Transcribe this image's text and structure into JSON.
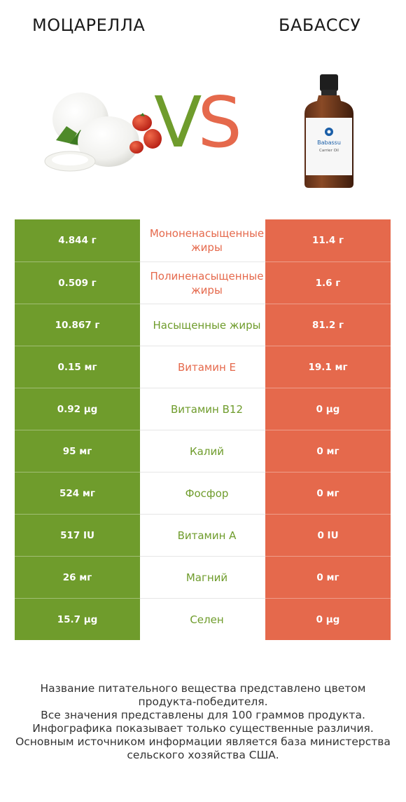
{
  "header": {
    "left_title": "МОЦАРЕЛЛА",
    "right_title": "БАБАССУ",
    "vs_v": "V",
    "vs_s": "S"
  },
  "images": {
    "left": "mozzarella-image",
    "right": "babassu-oil-bottle-image",
    "bottle_label_brand": "Babassu",
    "bottle_label_sub": "Carrier Oil"
  },
  "colors": {
    "left_accent": "#6f9c2c",
    "right_accent": "#e5694c"
  },
  "rows": [
    {
      "left": "4.844 г",
      "name": "Мононенасыщенные жиры",
      "right": "11.4 г",
      "winner": "right"
    },
    {
      "left": "0.509 г",
      "name": "Полиненасыщенные жиры",
      "right": "1.6 г",
      "winner": "right"
    },
    {
      "left": "10.867 г",
      "name": "Насыщенные жиры",
      "right": "81.2 г",
      "winner": "left"
    },
    {
      "left": "0.15 мг",
      "name": "Витамин E",
      "right": "19.1 мг",
      "winner": "right"
    },
    {
      "left": "0.92 µg",
      "name": "Витамин B12",
      "right": "0 µg",
      "winner": "left"
    },
    {
      "left": "95 мг",
      "name": "Калий",
      "right": "0 мг",
      "winner": "left"
    },
    {
      "left": "524 мг",
      "name": "Фосфор",
      "right": "0 мг",
      "winner": "left"
    },
    {
      "left": "517 IU",
      "name": "Витамин A",
      "right": "0 IU",
      "winner": "left"
    },
    {
      "left": "26 мг",
      "name": "Магний",
      "right": "0 мг",
      "winner": "left"
    },
    {
      "left": "15.7 µg",
      "name": "Селен",
      "right": "0 µg",
      "winner": "left"
    }
  ],
  "footer": [
    "Название питательного вещества представлено цветом",
    "продукта-победителя.",
    "Все значения представлены для 100 граммов продукта.",
    "Инфографика показывает только существенные различия.",
    "Основным источником информации является база министерства",
    "сельского хозяйства США."
  ]
}
